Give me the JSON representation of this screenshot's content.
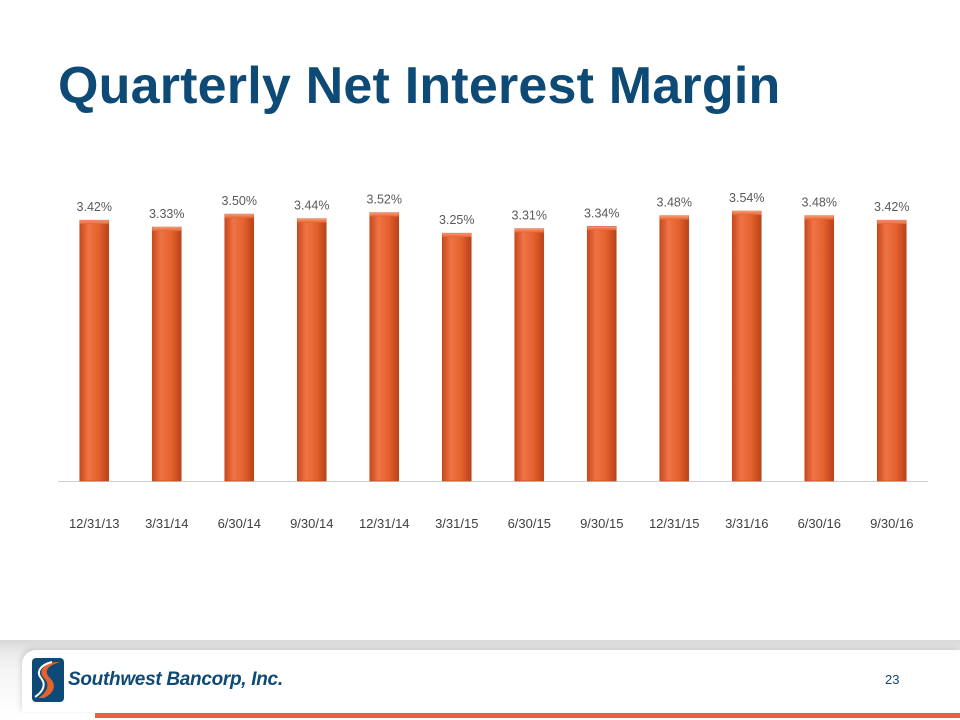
{
  "slide": {
    "title": "Quarterly Net Interest Margin",
    "company": "Southwest Bancorp, Inc.",
    "page_number": "23",
    "colors": {
      "title": "#0d4a75",
      "bar": "#e5612e",
      "accent_line": "#e8623a"
    }
  },
  "chart_data": {
    "type": "bar",
    "title": "Quarterly Net Interest Margin",
    "xlabel": "",
    "ylabel": "",
    "categories": [
      "12/31/13",
      "3/31/14",
      "6/30/14",
      "9/30/14",
      "12/31/14",
      "3/31/15",
      "6/30/15",
      "9/30/15",
      "12/31/15",
      "3/31/16",
      "6/30/16",
      "9/30/16"
    ],
    "values": [
      3.42,
      3.33,
      3.5,
      3.44,
      3.52,
      3.25,
      3.31,
      3.34,
      3.48,
      3.54,
      3.48,
      3.42
    ],
    "value_labels": [
      "3.42%",
      "3.33%",
      "3.50%",
      "3.44%",
      "3.52%",
      "3.25%",
      "3.31%",
      "3.34%",
      "3.48%",
      "3.54%",
      "3.48%",
      "3.42%"
    ],
    "ylim": [
      0,
      4.0
    ],
    "grid": false,
    "legend": "none"
  }
}
